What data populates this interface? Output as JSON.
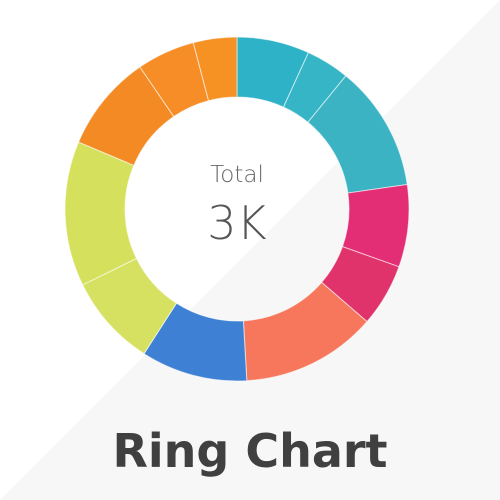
{
  "title": "Ring Chart",
  "center": {
    "label": "Total",
    "value": "3K"
  },
  "chart_data": {
    "type": "pie",
    "variant": "ring",
    "title": "Ring Chart",
    "center_label": "Total",
    "center_value": "3K",
    "direction": "clockwise",
    "start_angle_deg": 0,
    "slices": [
      {
        "value": 7.5,
        "color": "#2db2c8"
      },
      {
        "value": 4.5,
        "color": "#35b5c6"
      },
      {
        "value": 13,
        "color": "#3bb3c3"
      },
      {
        "value": 8.5,
        "color": "#e32d74"
      },
      {
        "value": 6.5,
        "color": "#e0336c"
      },
      {
        "value": 14,
        "color": "#f6775c"
      },
      {
        "value": 11,
        "color": "#3d80d4"
      },
      {
        "value": 9.5,
        "color": "#d6e161"
      },
      {
        "value": 15,
        "color": "#d5e05d"
      },
      {
        "value": 10,
        "color": "#f48a24"
      },
      {
        "value": 6,
        "color": "#f68d27"
      },
      {
        "value": 4.5,
        "color": "#f69123"
      }
    ]
  }
}
